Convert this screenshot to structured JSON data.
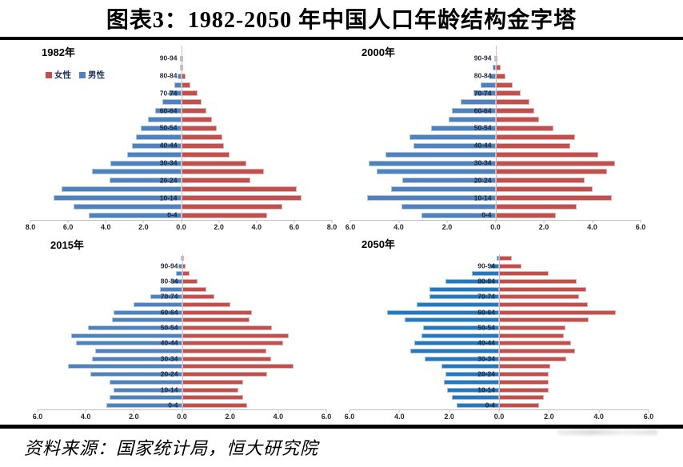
{
  "title": "图表3：1982-2050 年中国人口年龄结构金字塔",
  "source": "资料来源：国家统计局，恒大研究院",
  "legend": {
    "female_label": "女性",
    "male_label": "男性"
  },
  "colors": {
    "female": "#C0504D",
    "male": "#4F81BD",
    "male_2050": "#2578BE",
    "axis": "#BFBFBF"
  },
  "chart_data": [
    {
      "type": "bar",
      "variant": "population-pyramid",
      "title": "1982年",
      "unit": "percent of total population",
      "categories": [
        "0-4",
        "5-9",
        "10-14",
        "15-19",
        "20-24",
        "25-29",
        "30-34",
        "35-39",
        "40-44",
        "45-49",
        "50-54",
        "55-59",
        "60-64",
        "65-69",
        "70-74",
        "75-79",
        "80-84",
        "85-89",
        "90-94",
        "95-99"
      ],
      "labeled_categories": [
        "0-4",
        "10-14",
        "20-24",
        "30-34",
        "40-44",
        "50-54",
        "60-64",
        "70-74",
        "80-84",
        "90-94"
      ],
      "xlim": [
        -8,
        8
      ],
      "x_tick_labels": [
        "8.0",
        "6.0",
        "4.0",
        "2.0",
        "0.0",
        "2.0",
        "4.0",
        "6.0",
        "8.0"
      ],
      "legend_position": "top-left",
      "grid": false,
      "series": [
        {
          "name": "女性",
          "side": "right",
          "color": "#C0504D",
          "values": [
            4.55,
            5.35,
            6.4,
            6.15,
            3.65,
            4.4,
            3.45,
            2.55,
            2.25,
            2.2,
            1.9,
            1.65,
            1.35,
            1.1,
            0.85,
            0.5,
            0.25,
            0.1,
            0.05,
            0
          ]
        },
        {
          "name": "男性",
          "side": "left",
          "color": "#4F81BD",
          "values": [
            4.9,
            5.7,
            6.75,
            6.35,
            3.8,
            4.75,
            3.75,
            2.85,
            2.6,
            2.4,
            2.15,
            1.75,
            1.4,
            1.0,
            0.65,
            0.35,
            0.2,
            0.05,
            0.02,
            0
          ]
        }
      ]
    },
    {
      "type": "bar",
      "variant": "population-pyramid",
      "title": "2000年",
      "unit": "percent of total population",
      "categories": [
        "0-4",
        "5-9",
        "10-14",
        "15-19",
        "20-24",
        "25-29",
        "30-34",
        "35-39",
        "40-44",
        "45-49",
        "50-54",
        "55-59",
        "60-64",
        "65-69",
        "70-74",
        "75-79",
        "80-84",
        "85-89",
        "90-94",
        "95-99"
      ],
      "labeled_categories": [
        "0-4",
        "10-14",
        "20-24",
        "30-34",
        "40-44",
        "50-54",
        "60-64",
        "70-74",
        "80-84",
        "90-94"
      ],
      "xlim": [
        -6,
        6
      ],
      "x_tick_labels": [
        "6.0",
        "4.0",
        "2.0",
        "0.0",
        "2.0",
        "4.0",
        "6.0"
      ],
      "legend_position": "none",
      "grid": false,
      "series": [
        {
          "name": "女性",
          "side": "right",
          "color": "#C0504D",
          "values": [
            2.5,
            3.35,
            4.8,
            4.0,
            3.7,
            4.6,
            4.95,
            4.25,
            3.1,
            3.3,
            2.4,
            1.8,
            1.6,
            1.4,
            1.05,
            0.7,
            0.4,
            0.2,
            0.05,
            0
          ]
        },
        {
          "name": "男性",
          "side": "left",
          "color": "#4F81BD",
          "values": [
            3.05,
            3.9,
            5.3,
            4.3,
            3.85,
            4.9,
            5.25,
            4.55,
            3.4,
            3.55,
            2.65,
            1.95,
            1.8,
            1.45,
            0.9,
            0.6,
            0.25,
            0.1,
            0.02,
            0
          ]
        }
      ]
    },
    {
      "type": "bar",
      "variant": "population-pyramid",
      "title": "2015年",
      "unit": "percent of total population",
      "categories": [
        "0-4",
        "5-9",
        "10-14",
        "15-19",
        "20-24",
        "25-29",
        "30-34",
        "35-39",
        "40-44",
        "45-49",
        "50-54",
        "55-59",
        "60-64",
        "65-69",
        "70-74",
        "75-79",
        "80-84",
        "85-89",
        "90-94",
        "95-99"
      ],
      "labeled_categories": [
        "0-4",
        "10-14",
        "20-24",
        "30-34",
        "40-44",
        "50-54",
        "60-64",
        "70-74",
        "80-84",
        "90-94"
      ],
      "xlim": [
        -6,
        6
      ],
      "x_tick_labels": [
        "6.0",
        "4.0",
        "2.0",
        "0.0",
        "2.0",
        "4.0",
        "6.0"
      ],
      "legend_position": "none",
      "grid": false,
      "series": [
        {
          "name": "女性",
          "side": "right",
          "color": "#C0504D",
          "values": [
            2.7,
            2.55,
            2.35,
            2.55,
            3.55,
            4.65,
            3.7,
            3.5,
            4.2,
            4.45,
            3.75,
            2.8,
            2.9,
            2.0,
            1.35,
            1.0,
            0.65,
            0.3,
            0.15,
            0.05
          ]
        },
        {
          "name": "男性",
          "side": "left",
          "color": "#4F81BD",
          "values": [
            3.15,
            3.0,
            2.85,
            3.0,
            3.8,
            4.75,
            3.75,
            3.6,
            4.4,
            4.6,
            3.9,
            2.9,
            2.85,
            2.0,
            1.3,
            0.9,
            0.4,
            0.25,
            0.15,
            0.02
          ]
        }
      ]
    },
    {
      "type": "bar",
      "variant": "population-pyramid",
      "title": "2050年",
      "unit": "percent of total population",
      "categories": [
        "0-4",
        "5-9",
        "10-14",
        "15-19",
        "20-24",
        "25-29",
        "30-34",
        "35-39",
        "40-44",
        "45-49",
        "50-54",
        "55-59",
        "60-64",
        "65-69",
        "70-74",
        "75-79",
        "80-84",
        "85-89",
        "90-94",
        "95-99"
      ],
      "labeled_categories": [
        "0-4",
        "10-14",
        "20-24",
        "30-34",
        "40-44",
        "50-54",
        "60-64",
        "70-74",
        "80-84",
        "90-94"
      ],
      "xlim": [
        -6,
        6
      ],
      "x_tick_labels": [
        "6.0",
        "4.0",
        "2.0",
        "0.0",
        "2.0",
        "4.0",
        "6.0"
      ],
      "legend_position": "none",
      "grid": false,
      "series": [
        {
          "name": "女性",
          "side": "right",
          "color": "#C0504D",
          "values": [
            1.6,
            1.8,
            2.0,
            2.0,
            2.0,
            2.05,
            2.7,
            3.05,
            2.9,
            2.6,
            2.65,
            3.6,
            4.7,
            3.55,
            3.2,
            3.5,
            3.1,
            2.0,
            0.9,
            0.5
          ]
        },
        {
          "name": "男性",
          "side": "left",
          "color": "#2578BE",
          "values": [
            1.7,
            1.9,
            2.1,
            2.2,
            2.15,
            2.3,
            3.0,
            3.55,
            3.4,
            3.1,
            3.05,
            3.8,
            4.5,
            3.3,
            2.8,
            2.8,
            2.15,
            1.1,
            0.35,
            0.1
          ]
        }
      ]
    }
  ]
}
